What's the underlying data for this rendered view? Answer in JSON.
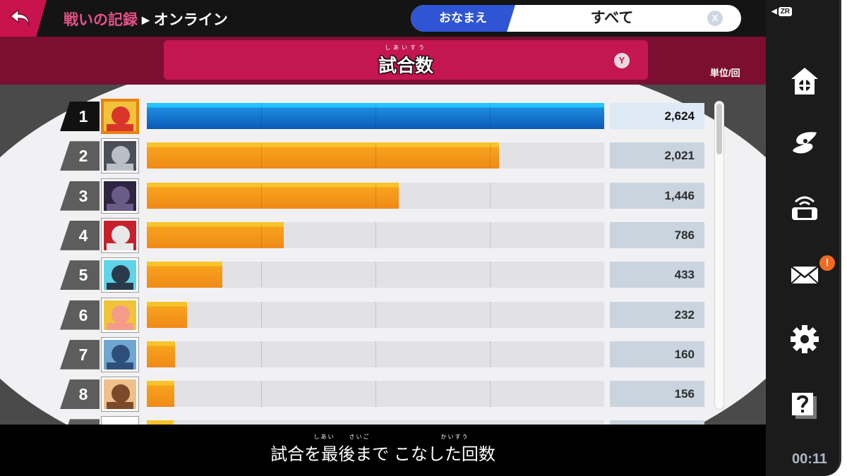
{
  "header": {
    "breadcrumb_1": "戦いの記録",
    "breadcrumb_sep": "▶",
    "breadcrumb_2": "オンライン"
  },
  "filter": {
    "tab_label": "おなまえ",
    "value": "すべて",
    "clear_glyph": "X"
  },
  "stat": {
    "ruby": "しあいすう",
    "title": "試合数",
    "y_glyph": "Y",
    "unit": "単位/回"
  },
  "caption": {
    "ruby": "しあい　　さいご　　　　　　　　　　かいすう",
    "text": "試合を最後まで こなした回数"
  },
  "rail": {
    "zr": "ZR",
    "badge": "!",
    "clock": "00:11"
  },
  "colors": {
    "accent": "#c41651",
    "first_bar": "#1d8bdf",
    "other_bar": "#f7a21b",
    "tab_blue": "#2f55d4"
  },
  "chart_data": {
    "type": "bar",
    "orientation": "horizontal",
    "unit": "単位/回",
    "xlim": [
      0,
      2624
    ],
    "categories": [
      "1",
      "2",
      "3",
      "4",
      "5",
      "6",
      "7",
      "8"
    ],
    "values": [
      2624,
      2021,
      1446,
      786,
      433,
      232,
      160,
      156
    ],
    "value_labels": [
      "2,624",
      "2,021",
      "1,446",
      "786",
      "433",
      "232",
      "160",
      "156"
    ],
    "icons": [
      "banjo-kazooie-portrait",
      "sephiroth-portrait",
      "ridley-portrait",
      "piranha-plant-portrait",
      "dark-samus-portrait",
      "min-min-portrait",
      "byleth-portrait",
      "sora-portrait"
    ],
    "grid": true
  }
}
